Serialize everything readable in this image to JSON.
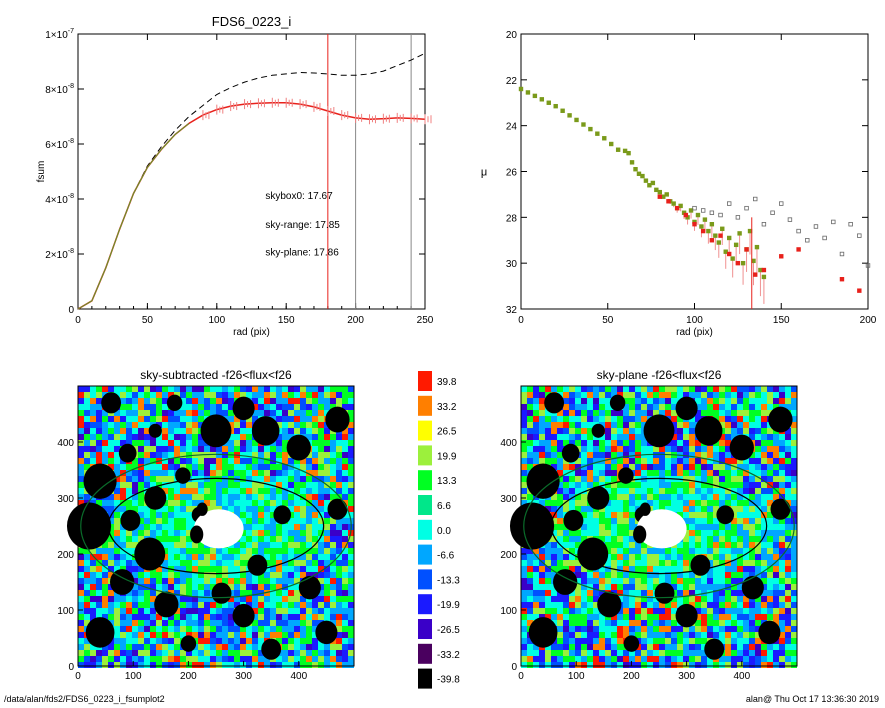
{
  "footer": {
    "path": "/data/alan/fds2/FDS6_0223_i_fsumplot2",
    "stamp": "alan@  Thu Oct 17 13:36:30 2019"
  },
  "chart_data": [
    {
      "type": "line",
      "title": "FDS6_0223_i",
      "xlabel": "rad (pix)",
      "ylabel": "fsum",
      "xlim": [
        0,
        250
      ],
      "ylim": [
        0,
        1e-07
      ],
      "xticks": [
        0,
        50,
        100,
        150,
        200,
        250
      ],
      "ytick_labels": [
        {
          "value": 0,
          "mant": "0",
          "exp": ""
        },
        {
          "value": 2e-08,
          "mant": "2×10",
          "exp": "-8"
        },
        {
          "value": 4e-08,
          "mant": "4×10",
          "exp": "-8"
        },
        {
          "value": 6e-08,
          "mant": "6×10",
          "exp": "-8"
        },
        {
          "value": 8e-08,
          "mant": "8×10",
          "exp": "-8"
        },
        {
          "value": 1e-07,
          "mant": "1×10",
          "exp": "-7"
        }
      ],
      "series": [
        {
          "style": "dashed",
          "color": "#000000",
          "x": [
            0,
            10,
            20,
            30,
            40,
            50,
            60,
            70,
            80,
            90,
            100,
            110,
            120,
            130,
            140,
            150,
            160,
            170,
            180,
            190,
            200,
            210,
            220,
            230,
            240,
            250
          ],
          "y": [
            0,
            3e-09,
            1.5e-08,
            2.9e-08,
            4.2e-08,
            5.2e-08,
            5.9e-08,
            6.5e-08,
            7e-08,
            7.4e-08,
            7.8e-08,
            8.05e-08,
            8.25e-08,
            8.4e-08,
            8.5e-08,
            8.55e-08,
            8.6e-08,
            8.58e-08,
            8.55e-08,
            8.5e-08,
            8.5e-08,
            8.55e-08,
            8.65e-08,
            8.85e-08,
            9.05e-08,
            9.3e-08
          ]
        },
        {
          "style": "solid-errorbars",
          "color": "#e8211b",
          "x": [
            0,
            10,
            20,
            30,
            40,
            50,
            60,
            70,
            80,
            90,
            100,
            110,
            120,
            130,
            140,
            150,
            160,
            170,
            180,
            190,
            200,
            210,
            220,
            230,
            240,
            250
          ],
          "y": [
            0,
            3e-09,
            1.5e-08,
            2.9e-08,
            4.2e-08,
            5.15e-08,
            5.8e-08,
            6.35e-08,
            6.75e-08,
            7.05e-08,
            7.25e-08,
            7.38e-08,
            7.45e-08,
            7.48e-08,
            7.5e-08,
            7.5e-08,
            7.45e-08,
            7.35e-08,
            7.2e-08,
            7.05e-08,
            6.95e-08,
            6.9e-08,
            6.92e-08,
            6.95e-08,
            6.93e-08,
            6.9e-08
          ]
        },
        {
          "style": "solid",
          "color": "#5aa02c",
          "x": [
            0,
            10,
            20,
            30,
            40,
            50,
            60,
            70,
            80
          ],
          "y": [
            0,
            3e-09,
            1.5e-08,
            2.9e-08,
            4.2e-08,
            5.15e-08,
            5.8e-08,
            6.35e-08,
            6.75e-08
          ]
        }
      ],
      "vlines": [
        {
          "x": 180,
          "color": "#e8211b"
        },
        {
          "x": 200,
          "color": "#888888"
        },
        {
          "x": 240,
          "color": "#888888"
        }
      ],
      "annotations": [
        {
          "text": "skybox0: 17.67",
          "color": "#000000",
          "x": 135,
          "y": 4e-08
        },
        {
          "text": "sky-range: 17.85",
          "color": "#e8211b",
          "x": 135,
          "y": 2.95e-08
        },
        {
          "text": "sky-plane: 17.86",
          "color": "#22dd22",
          "x": 135,
          "y": 1.95e-08
        }
      ]
    },
    {
      "type": "scatter",
      "title": "",
      "xlabel": "rad (pix)",
      "ylabel": "μ",
      "xlim": [
        0,
        200
      ],
      "ylim": [
        32,
        20
      ],
      "xticks": [
        0,
        50,
        100,
        150,
        200
      ],
      "yticks": [
        20,
        22,
        24,
        26,
        28,
        30,
        32
      ],
      "series": [
        {
          "color": "#7a9a1a",
          "x": [
            0,
            4,
            8,
            12,
            16,
            20,
            24,
            28,
            32,
            36,
            40,
            44,
            48,
            52,
            56,
            60,
            62,
            64,
            66,
            68,
            70,
            72,
            74,
            76,
            78,
            80,
            82,
            84,
            86,
            88,
            90,
            92,
            94,
            96,
            98,
            100,
            102,
            104,
            106,
            108,
            110,
            112,
            114,
            116,
            118,
            120,
            122,
            124,
            126,
            128,
            130,
            132,
            134,
            136,
            138,
            140
          ],
          "y": [
            22.4,
            22.55,
            22.7,
            22.85,
            23.0,
            23.15,
            23.35,
            23.55,
            23.75,
            23.95,
            24.15,
            24.35,
            24.55,
            24.8,
            25.05,
            25.1,
            25.2,
            25.6,
            25.9,
            26.1,
            26.2,
            26.4,
            26.6,
            26.5,
            26.8,
            26.9,
            27.1,
            27.0,
            27.3,
            27.4,
            27.6,
            27.5,
            27.8,
            28.0,
            27.7,
            28.2,
            27.9,
            28.4,
            28.1,
            28.6,
            28.3,
            28.8,
            29.1,
            28.5,
            29.5,
            28.9,
            29.8,
            29.2,
            28.7,
            30.0,
            29.4,
            28.6,
            29.9,
            29.3,
            30.3,
            30.6
          ]
        },
        {
          "color": "#e8211b",
          "x": [
            80,
            85,
            90,
            95,
            100,
            105,
            110,
            115,
            120,
            125,
            130,
            135,
            140,
            150,
            160,
            185,
            195
          ],
          "y": [
            27.1,
            27.3,
            27.6,
            27.9,
            28.3,
            28.6,
            29.0,
            28.8,
            29.6,
            30.0,
            29.4,
            30.5,
            30.3,
            29.7,
            29.4,
            30.7,
            31.2
          ]
        },
        {
          "color": "#666666",
          "x": [
            100,
            105,
            110,
            115,
            120,
            125,
            130,
            135,
            140,
            145,
            150,
            155,
            160,
            165,
            170,
            175,
            180,
            185,
            190,
            195,
            200
          ],
          "y": [
            27.6,
            27.7,
            27.8,
            27.9,
            27.4,
            28.0,
            27.6,
            27.2,
            28.3,
            27.8,
            27.4,
            28.1,
            28.6,
            29.0,
            28.4,
            28.9,
            28.2,
            29.6,
            28.3,
            28.8,
            30.1
          ]
        }
      ]
    },
    {
      "type": "heatmap",
      "title": "sky-subtracted -f26<flux<f26",
      "xlim": [
        0,
        500
      ],
      "ylim": [
        0,
        500
      ],
      "xticks": [
        0,
        100,
        200,
        300,
        400
      ],
      "yticks": [
        0,
        100,
        200,
        300,
        400
      ],
      "ellipses": [
        {
          "cx": 250,
          "cy": 250,
          "rx": 195,
          "ry": 85
        },
        {
          "cx": 250,
          "cy": 250,
          "rx": 245,
          "ry": 128
        }
      ]
    },
    {
      "type": "heatmap",
      "title": "sky-plane -f26<flux<f26",
      "xlim": [
        0,
        500
      ],
      "ylim": [
        0,
        500
      ],
      "xticks": [
        0,
        100,
        200,
        300,
        400
      ],
      "yticks": [
        0,
        100,
        200,
        300,
        400
      ],
      "ellipses": [
        {
          "cx": 250,
          "cy": 250,
          "rx": 195,
          "ry": 85
        },
        {
          "cx": 250,
          "cy": 250,
          "rx": 245,
          "ry": 128
        }
      ]
    }
  ],
  "colorbar": {
    "labels": [
      "39.8",
      "33.2",
      "26.5",
      "19.9",
      "13.3",
      "6.6",
      "0.0",
      "-6.6",
      "-13.3",
      "-19.9",
      "-26.5",
      "-33.2",
      "-39.8"
    ],
    "colors": [
      "#ff1a00",
      "#ff7f00",
      "#ffff00",
      "#9cf03c",
      "#00ff22",
      "#00e78a",
      "#00ffe4",
      "#00a7ff",
      "#0050ff",
      "#1a1aff",
      "#3a00c8",
      "#4a005f",
      "#000000"
    ]
  }
}
